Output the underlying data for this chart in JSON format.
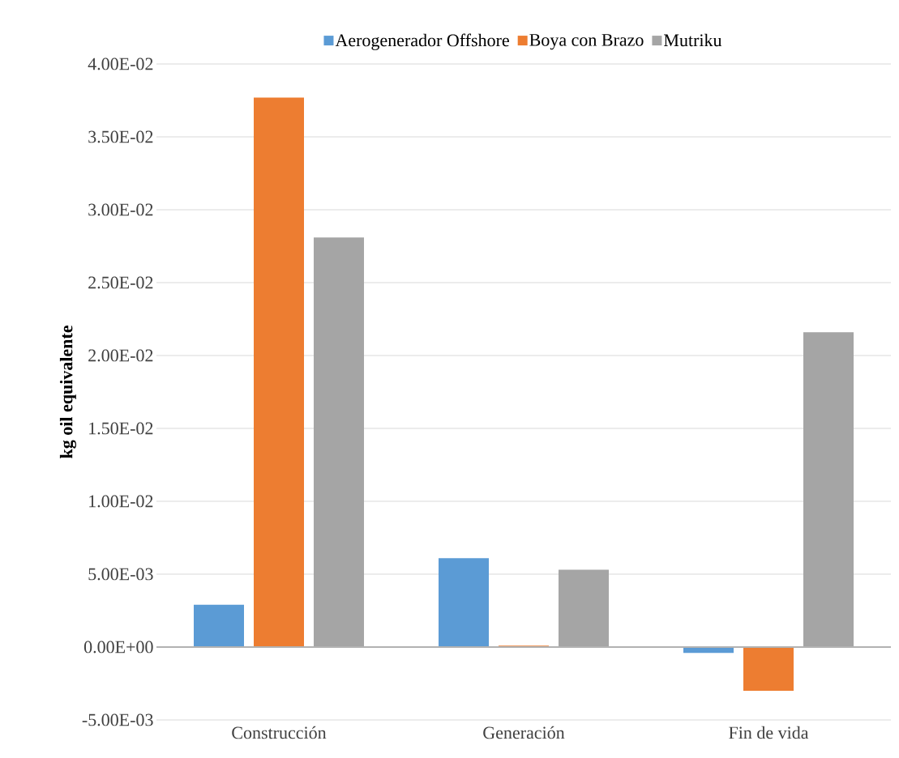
{
  "chart_data": {
    "type": "bar",
    "ylabel": "kg oil equivalente",
    "categories": [
      "Construcción",
      "Generación",
      "Fin de vida"
    ],
    "series": [
      {
        "name": "Aerogenerador Offshore",
        "color": "#5b9bd5",
        "values": [
          0.0029,
          0.0061,
          -0.0004
        ]
      },
      {
        "name": "Boya con Brazo",
        "color": "#ed7d31",
        "values": [
          0.0377,
          0.0001,
          -0.003
        ]
      },
      {
        "name": "Mutriku",
        "color": "#a5a5a5",
        "values": [
          0.0281,
          0.0053,
          0.0216
        ]
      }
    ],
    "ylim": [
      -0.005,
      0.04
    ],
    "yticks": [
      {
        "value": -0.005,
        "label": "-5.00E-03"
      },
      {
        "value": 0,
        "label": "0.00E+00"
      },
      {
        "value": 0.005,
        "label": "5.00E-03"
      },
      {
        "value": 0.01,
        "label": "1.00E-02"
      },
      {
        "value": 0.015,
        "label": "1.50E-02"
      },
      {
        "value": 0.02,
        "label": "2.00E-02"
      },
      {
        "value": 0.025,
        "label": "2.50E-02"
      },
      {
        "value": 0.03,
        "label": "3.00E-02"
      },
      {
        "value": 0.035,
        "label": "3.50E-02"
      },
      {
        "value": 0.04,
        "label": "4.00E-02"
      }
    ],
    "grid": "y",
    "legend": "top"
  }
}
